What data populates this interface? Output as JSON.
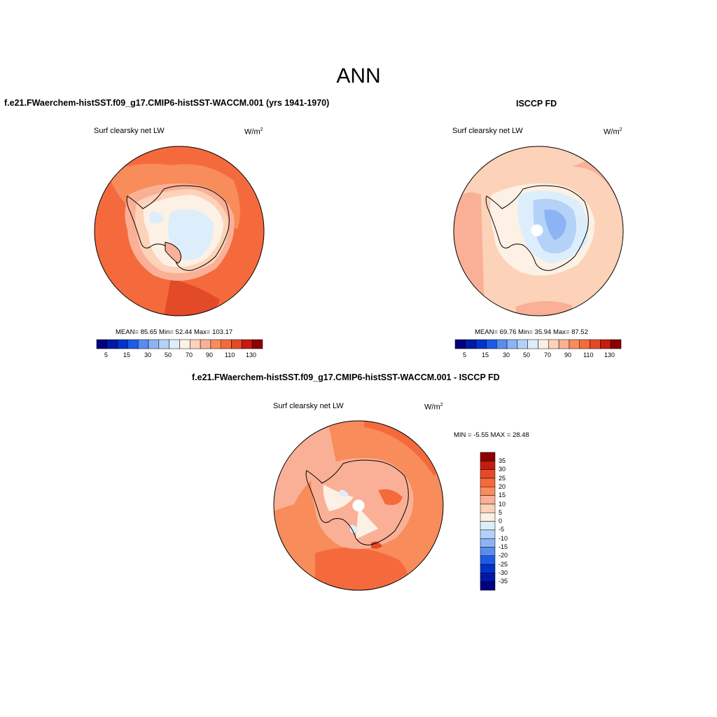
{
  "main_title": "ANN",
  "colors": {
    "scale": [
      "#00007f",
      "#0019a6",
      "#0033cc",
      "#1e5ae6",
      "#5a8cf0",
      "#8cb4f5",
      "#b4d2f8",
      "#dceefb",
      "#fdf0e4",
      "#fcd2b8",
      "#fab096",
      "#f88c5a",
      "#f56a3c",
      "#e34a28",
      "#c31d0f",
      "#8c0000"
    ],
    "diff": [
      "#00007f",
      "#0019a6",
      "#0033cc",
      "#1e5ae6",
      "#5a8cf0",
      "#8cb4f5",
      "#b4d2f8",
      "#dceefb",
      "#fdf0e4",
      "#fcd2b8",
      "#fab096",
      "#f88c5a",
      "#f56a3c",
      "#e34a28",
      "#c31d0f",
      "#8c0000"
    ]
  },
  "panels": {
    "model": {
      "title": "f.e21.FWaerchem-histSST.f09_g17.CMIP6-histSST-WACCM.001 (yrs 1941-1970)",
      "variable": "Surf clearsky net LW",
      "units": "W/m",
      "units_sup": "2",
      "stats": "MEAN=  85.65  Min=  52.44  Max= 103.17",
      "ticks": [
        "5",
        "15",
        "30",
        "50",
        "70",
        "90",
        "110",
        "130"
      ]
    },
    "obs": {
      "title": "ISCCP FD",
      "variable": "Surf clearsky net LW",
      "units": "W/m",
      "units_sup": "2",
      "stats": "MEAN=  69.76  Min=  35.94  Max=  87.52",
      "ticks": [
        "5",
        "15",
        "30",
        "50",
        "70",
        "90",
        "110",
        "130"
      ]
    },
    "diff": {
      "title": "f.e21.FWaerchem-histSST.f09_g17.CMIP6-histSST-WACCM.001 - ISCCP FD",
      "variable": "Surf clearsky net LW",
      "units": "W/m",
      "units_sup": "2",
      "minmax": "MIN =  -5.55 MAX =  28.48",
      "ticks": [
        "35",
        "30",
        "25",
        "20",
        "15",
        "10",
        "5",
        "0",
        "-5",
        "-10",
        "-15",
        "-20",
        "-25",
        "-30",
        "-35"
      ]
    }
  }
}
